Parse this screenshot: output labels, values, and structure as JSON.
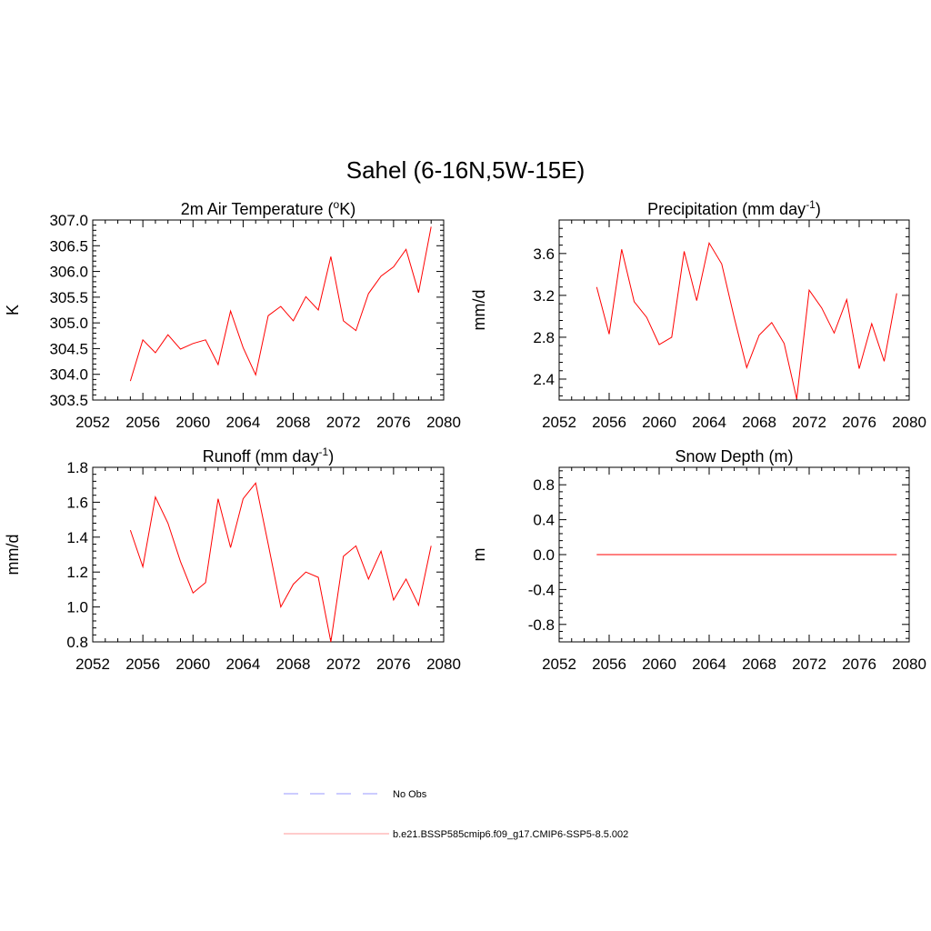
{
  "figure": {
    "title": "Sahel (6-16N,5W-15E)"
  },
  "legend": {
    "items": [
      {
        "label": "No Obs",
        "color": "#9999ff",
        "style": "dashed"
      },
      {
        "label": "b.e21.BSSP585cmip6.f09_g17.CMIP6-SSP5-8.5.002",
        "color": "#ff9999",
        "style": "solid"
      }
    ]
  },
  "chart_data": [
    {
      "type": "line",
      "title": "2m Air Temperature (°K)",
      "title_parts": [
        "2m Air Temperature (",
        "o",
        "K)"
      ],
      "xlabel": "",
      "ylabel": "K",
      "xlim": [
        2052,
        2080
      ],
      "ylim": [
        303.5,
        307.0
      ],
      "xticks": [
        2052,
        2056,
        2060,
        2064,
        2068,
        2072,
        2076,
        2080
      ],
      "yticks": [
        303.5,
        304.0,
        304.5,
        305.0,
        305.5,
        306.0,
        306.5,
        307.0
      ],
      "ytick_labels": [
        "303.5",
        "304.0",
        "304.5",
        "305.0",
        "305.5",
        "306.0",
        "306.5",
        "307.0"
      ],
      "series": [
        {
          "color": "#ff0000",
          "x": [
            2055,
            2056,
            2057,
            2058,
            2059,
            2060,
            2061,
            2062,
            2063,
            2064,
            2065,
            2066,
            2067,
            2068,
            2069,
            2070,
            2071,
            2072,
            2073,
            2074,
            2075,
            2076,
            2077,
            2078,
            2079
          ],
          "y": [
            303.87,
            304.67,
            304.42,
            304.77,
            304.49,
            304.6,
            304.67,
            304.19,
            305.23,
            304.52,
            303.99,
            305.14,
            305.32,
            305.04,
            305.51,
            305.25,
            306.29,
            305.04,
            304.85,
            305.57,
            305.91,
            306.09,
            306.43,
            305.59,
            306.87
          ]
        }
      ]
    },
    {
      "type": "line",
      "title": "Precipitation (mm day-1)",
      "title_parts": [
        "Precipitation (mm day",
        "-1",
        ")"
      ],
      "xlabel": "",
      "ylabel": "mm/d",
      "xlim": [
        2052,
        2080
      ],
      "ylim": [
        2.2,
        3.92
      ],
      "xticks": [
        2052,
        2056,
        2060,
        2064,
        2068,
        2072,
        2076,
        2080
      ],
      "yticks": [
        2.4,
        2.8,
        3.2,
        3.6
      ],
      "ytick_labels": [
        "2.4",
        "2.8",
        "3.2",
        "3.6"
      ],
      "series": [
        {
          "color": "#ff0000",
          "x": [
            2055,
            2056,
            2057,
            2058,
            2059,
            2060,
            2061,
            2062,
            2063,
            2064,
            2065,
            2066,
            2067,
            2068,
            2069,
            2070,
            2071,
            2072,
            2073,
            2074,
            2075,
            2076,
            2077,
            2078,
            2079
          ],
          "y": [
            3.28,
            2.83,
            3.64,
            3.14,
            2.99,
            2.73,
            2.8,
            3.62,
            3.15,
            3.7,
            3.5,
            2.99,
            2.51,
            2.82,
            2.94,
            2.74,
            2.21,
            3.25,
            3.08,
            2.84,
            3.16,
            2.5,
            2.93,
            2.57,
            3.22
          ]
        }
      ]
    },
    {
      "type": "line",
      "title": "Runoff (mm day-1)",
      "title_parts": [
        "Runoff (mm day",
        "-1",
        ")"
      ],
      "xlabel": "",
      "ylabel": "mm/d",
      "xlim": [
        2052,
        2080
      ],
      "ylim": [
        0.8,
        1.8
      ],
      "xticks": [
        2052,
        2056,
        2060,
        2064,
        2068,
        2072,
        2076,
        2080
      ],
      "yticks": [
        0.8,
        1.0,
        1.2,
        1.4,
        1.6,
        1.8
      ],
      "ytick_labels": [
        "0.8",
        "1.0",
        "1.2",
        "1.4",
        "1.6",
        "1.8"
      ],
      "series": [
        {
          "color": "#ff0000",
          "x": [
            2055,
            2056,
            2057,
            2058,
            2059,
            2060,
            2061,
            2062,
            2063,
            2064,
            2065,
            2066,
            2067,
            2068,
            2069,
            2070,
            2071,
            2072,
            2073,
            2074,
            2075,
            2076,
            2077,
            2078,
            2079
          ],
          "y": [
            1.44,
            1.23,
            1.63,
            1.48,
            1.26,
            1.08,
            1.14,
            1.62,
            1.34,
            1.62,
            1.71,
            1.36,
            1.0,
            1.13,
            1.2,
            1.17,
            0.8,
            1.29,
            1.35,
            1.16,
            1.32,
            1.04,
            1.16,
            1.01,
            1.35
          ]
        }
      ]
    },
    {
      "type": "line",
      "title": "Snow Depth (m)",
      "title_parts": [
        "Snow Depth (m)",
        "",
        ""
      ],
      "xlabel": "",
      "ylabel": "m",
      "xlim": [
        2052,
        2080
      ],
      "ylim": [
        -1.0,
        1.0
      ],
      "xticks": [
        2052,
        2056,
        2060,
        2064,
        2068,
        2072,
        2076,
        2080
      ],
      "yticks": [
        -0.8,
        -0.4,
        0.0,
        0.4,
        0.8
      ],
      "ytick_labels": [
        "-0.8",
        "-0.4",
        "0.0",
        "0.4",
        "0.8"
      ],
      "series": [
        {
          "color": "#ff0000",
          "x": [
            2055,
            2056,
            2057,
            2058,
            2059,
            2060,
            2061,
            2062,
            2063,
            2064,
            2065,
            2066,
            2067,
            2068,
            2069,
            2070,
            2071,
            2072,
            2073,
            2074,
            2075,
            2076,
            2077,
            2078,
            2079
          ],
          "y": [
            0,
            0,
            0,
            0,
            0,
            0,
            0,
            0,
            0,
            0,
            0,
            0,
            0,
            0,
            0,
            0,
            0,
            0,
            0,
            0,
            0,
            0,
            0,
            0,
            0
          ]
        }
      ]
    }
  ]
}
